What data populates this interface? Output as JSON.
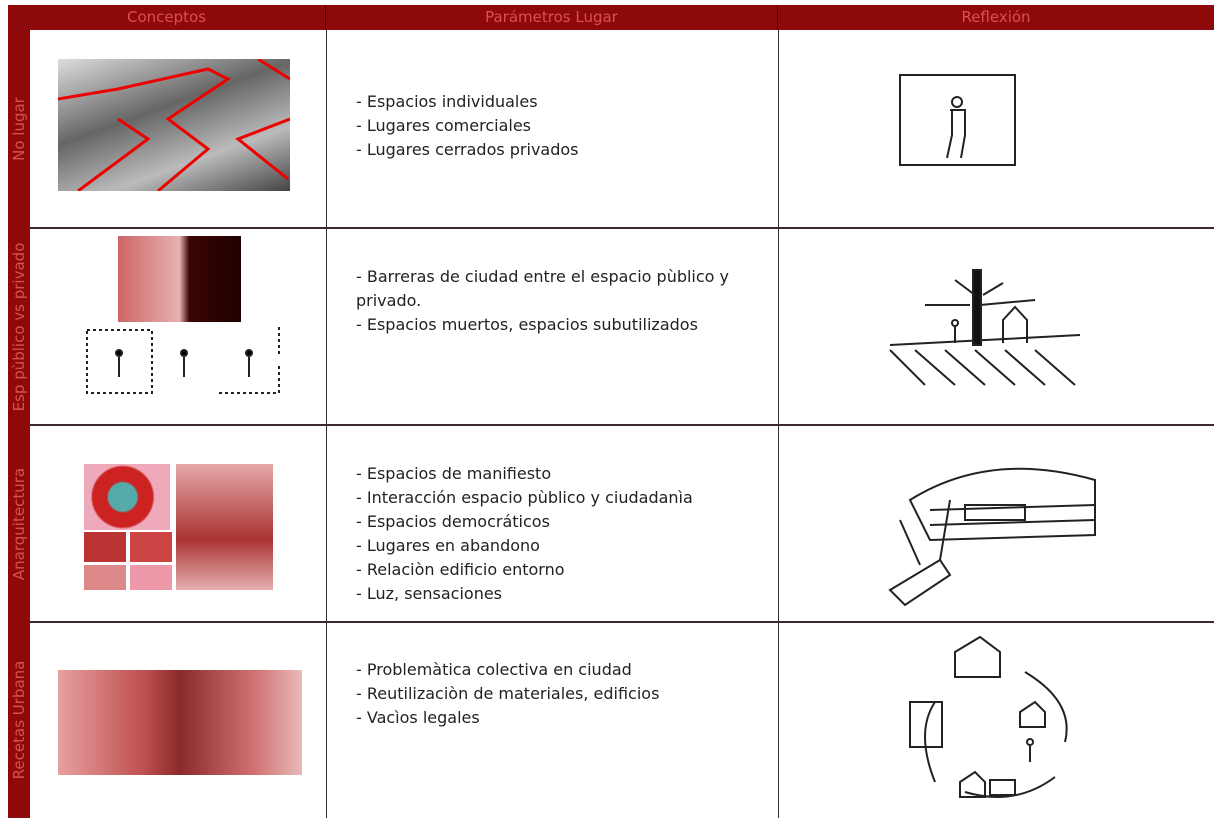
{
  "header": {
    "columns": [
      "Conceptos",
      "Parámetros Lugar",
      "Reflexión"
    ]
  },
  "rows": [
    {
      "label": "No lugar",
      "items": [
        "- Espacios individuales",
        "- Lugares comerciales",
        "- Lugares cerrados privados"
      ]
    },
    {
      "label": "Esp pùblico vs privado",
      "items": [
        "- Barreras de ciudad entre el espacio pùblico y privado.",
        "- Espacios muertos, espacios subutilizados"
      ]
    },
    {
      "label": "Anarquitectura",
      "items": [
        "- Espacios de manifiesto",
        "- Interacción espacio pùblico y ciudadanìa",
        "- Espacios democráticos",
        "- Lugares en abandono",
        "- Relaciòn edificio entorno",
        "- Luz, sensaciones"
      ]
    },
    {
      "label": "Recetas Urbana",
      "items": [
        "- Problemàtica colectiva en ciudad",
        "- Reutilizaciòn de materiales, edificios",
        "- Vacìos legales"
      ]
    }
  ]
}
